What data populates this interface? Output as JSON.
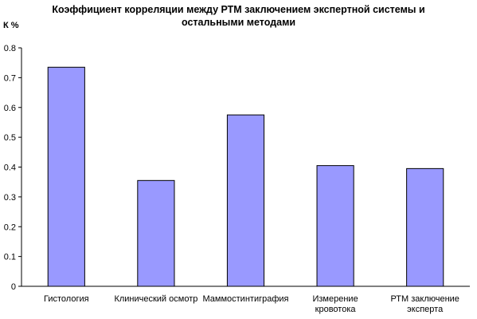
{
  "chart_data": {
    "type": "bar",
    "title_lines": [
      "Коэффициент корреляции между РТМ заключением экспертной системы и",
      "остальными методами"
    ],
    "ylabel": "К %",
    "xlabel": "",
    "categories": [
      [
        "Гистология"
      ],
      [
        "Клинический осмотр"
      ],
      [
        "Маммостинтиграфия"
      ],
      [
        "Измерение",
        "кровотока"
      ],
      [
        "РТМ  заключение",
        "эксперта"
      ]
    ],
    "values": [
      0.735,
      0.355,
      0.575,
      0.405,
      0.395
    ],
    "ylim": [
      0,
      0.8
    ],
    "yticks": [
      "0",
      "0.1",
      "0.2",
      "0.3",
      "0.4",
      "0.5",
      "0.6",
      "0.7",
      "0.8"
    ],
    "bar_color": "#9999ff",
    "grid": false,
    "legend": "none"
  }
}
